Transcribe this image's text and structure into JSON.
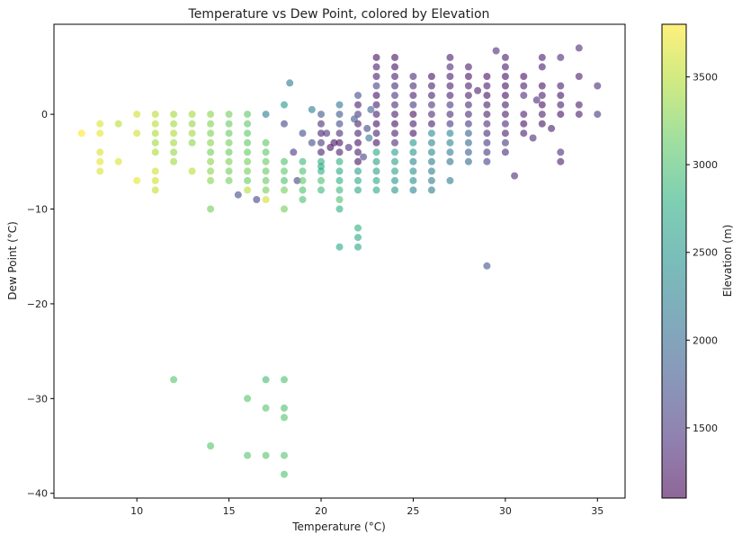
{
  "chart_data": {
    "type": "scatter",
    "title": "Temperature vs Dew Point, colored by Elevation",
    "xlabel": "Temperature (°C)",
    "ylabel": "Dew Point (°C)",
    "xlim": [
      5.5,
      36.5
    ],
    "ylim": [
      -40.5,
      9.5
    ],
    "xticks": [
      10,
      15,
      20,
      25,
      30,
      35
    ],
    "yticks": [
      -40,
      -30,
      -20,
      -10,
      0
    ],
    "grid": false,
    "colorbar": {
      "label": "Elevation (m)",
      "colormap": "viridis",
      "range": [
        1100,
        3800
      ],
      "ticks": [
        1500,
        2000,
        2500,
        3000,
        3500
      ]
    },
    "marker_alpha": 0.6,
    "points": [
      [
        7,
        -2,
        3800
      ],
      [
        8,
        -1,
        3650
      ],
      [
        8,
        -2,
        3700
      ],
      [
        8,
        -4,
        3650
      ],
      [
        8,
        -5,
        3700
      ],
      [
        8,
        -6,
        3650
      ],
      [
        9,
        -1,
        3500
      ],
      [
        9,
        -5,
        3650
      ],
      [
        10,
        0,
        3600
      ],
      [
        10,
        -2,
        3600
      ],
      [
        10,
        -7,
        3700
      ],
      [
        11,
        0,
        3500
      ],
      [
        11,
        -1,
        3500
      ],
      [
        11,
        -2,
        3450
      ],
      [
        11,
        -3,
        3400
      ],
      [
        11,
        -4,
        3450
      ],
      [
        11,
        -6,
        3600
      ],
      [
        11,
        -7,
        3600
      ],
      [
        11,
        -8,
        3550
      ],
      [
        12,
        0,
        3400
      ],
      [
        12,
        -1,
        3400
      ],
      [
        12,
        -2,
        3450
      ],
      [
        12,
        -3,
        3400
      ],
      [
        12,
        -4,
        3350
      ],
      [
        12,
        -5,
        3400
      ],
      [
        12,
        -28,
        3050
      ],
      [
        13,
        0,
        3400
      ],
      [
        13,
        -1,
        3350
      ],
      [
        13,
        -2,
        3400
      ],
      [
        13,
        -3,
        3300
      ],
      [
        13,
        -6,
        3500
      ],
      [
        14,
        0,
        3300
      ],
      [
        14,
        -1,
        3250
      ],
      [
        14,
        -2,
        3250
      ],
      [
        14,
        -3,
        3300
      ],
      [
        14,
        -4,
        3200
      ],
      [
        14,
        -5,
        3300
      ],
      [
        14,
        -6,
        3300
      ],
      [
        14,
        -7,
        3300
      ],
      [
        14,
        -10,
        3200
      ],
      [
        14,
        -35,
        3050
      ],
      [
        15,
        0,
        3200
      ],
      [
        15,
        -1,
        3150
      ],
      [
        15,
        -2,
        3150
      ],
      [
        15,
        -3,
        3200
      ],
      [
        15,
        -4,
        3150
      ],
      [
        15,
        -5,
        3250
      ],
      [
        15,
        -6,
        3200
      ],
      [
        15,
        -7,
        3200
      ],
      [
        16,
        0,
        3100
      ],
      [
        16,
        -1,
        3100
      ],
      [
        16,
        -2,
        3100
      ],
      [
        16,
        -3,
        3100
      ],
      [
        16,
        -4,
        3150
      ],
      [
        16,
        -5,
        3200
      ],
      [
        16,
        -6,
        3200
      ],
      [
        16,
        -7,
        3150
      ],
      [
        16,
        -8,
        3500
      ],
      [
        16,
        -30,
        3050
      ],
      [
        16,
        -36,
        3050
      ],
      [
        17,
        0,
        2200
      ],
      [
        17,
        -3,
        3100
      ],
      [
        17,
        -4,
        3100
      ],
      [
        17,
        -5,
        3150
      ],
      [
        17,
        -6,
        3150
      ],
      [
        17,
        -7,
        3150
      ],
      [
        17,
        -8,
        3200
      ],
      [
        17,
        -9,
        3600
      ],
      [
        17,
        -28,
        2950
      ],
      [
        17,
        -31,
        3050
      ],
      [
        17,
        -36,
        3050
      ],
      [
        16.5,
        -9,
        1600
      ],
      [
        15.5,
        -8.5,
        1700
      ],
      [
        18,
        1,
        2500
      ],
      [
        18,
        -1,
        1600
      ],
      [
        18,
        -5,
        3000
      ],
      [
        18,
        -6,
        3100
      ],
      [
        18,
        -7,
        3000
      ],
      [
        18,
        -8,
        3200
      ],
      [
        18,
        -10,
        3200
      ],
      [
        18,
        -28,
        3000
      ],
      [
        18,
        -31,
        3000
      ],
      [
        18,
        -32,
        3050
      ],
      [
        18,
        -36,
        3050
      ],
      [
        18,
        -38,
        3000
      ],
      [
        18.3,
        3.3,
        2200
      ],
      [
        18.5,
        -4,
        1500
      ],
      [
        18.7,
        -7,
        1600
      ],
      [
        19,
        -5,
        2900
      ],
      [
        19,
        -6,
        3000
      ],
      [
        19,
        -7,
        3100
      ],
      [
        19,
        -8,
        3000
      ],
      [
        19,
        -9,
        3000
      ],
      [
        19,
        -2,
        1700
      ],
      [
        19.5,
        0.5,
        2200
      ],
      [
        19.5,
        -3,
        1700
      ],
      [
        20,
        0,
        1800
      ],
      [
        20,
        -1,
        1400
      ],
      [
        20,
        -2,
        1300
      ],
      [
        20,
        -3,
        1500
      ],
      [
        20,
        -4,
        1300
      ],
      [
        20,
        -5,
        2800
      ],
      [
        20,
        -6,
        2800
      ],
      [
        20,
        -7,
        3000
      ],
      [
        20,
        -8,
        2900
      ],
      [
        20,
        -5.5,
        2700
      ],
      [
        20.3,
        -2,
        1500
      ],
      [
        20.5,
        -3.5,
        1200
      ],
      [
        21,
        0,
        1800
      ],
      [
        21,
        -1,
        1700
      ],
      [
        21,
        -2,
        1400
      ],
      [
        21,
        -3,
        1200
      ],
      [
        21,
        -4,
        1300
      ],
      [
        21,
        -5,
        2800
      ],
      [
        21,
        -6,
        2700
      ],
      [
        21,
        -7,
        2800
      ],
      [
        21,
        -8,
        2900
      ],
      [
        21,
        -9,
        3000
      ],
      [
        21,
        -10,
        2800
      ],
      [
        21,
        -14,
        2700
      ],
      [
        21,
        1,
        2100
      ],
      [
        20.7,
        -3,
        1200
      ],
      [
        21.5,
        -3.5,
        1400
      ],
      [
        22,
        -1,
        1300
      ],
      [
        22,
        -2,
        1300
      ],
      [
        22,
        -3,
        1200
      ],
      [
        22,
        -4,
        1300
      ],
      [
        22,
        -5,
        1200
      ],
      [
        22,
        -6,
        2600
      ],
      [
        22,
        -7,
        2700
      ],
      [
        22,
        -8,
        2700
      ],
      [
        22,
        -12,
        2800
      ],
      [
        22,
        -13,
        2700
      ],
      [
        22,
        -14,
        2700
      ],
      [
        22,
        0,
        1500
      ],
      [
        22,
        1,
        1300
      ],
      [
        22,
        2,
        1700
      ],
      [
        21.8,
        -0.5,
        1800
      ],
      [
        22.5,
        -1.5,
        1600
      ],
      [
        22.3,
        -4.5,
        1600
      ],
      [
        23,
        0,
        1300
      ],
      [
        23,
        -1,
        1200
      ],
      [
        23,
        -2,
        1300
      ],
      [
        23,
        -3,
        1200
      ],
      [
        23,
        -4,
        2700
      ],
      [
        23,
        -5,
        2600
      ],
      [
        23,
        -6,
        2600
      ],
      [
        23,
        -7,
        2700
      ],
      [
        23,
        -8,
        2700
      ],
      [
        23,
        1,
        1300
      ],
      [
        23,
        2,
        1200
      ],
      [
        23,
        3,
        1600
      ],
      [
        23,
        4,
        1300
      ],
      [
        23,
        5,
        1300
      ],
      [
        23,
        6,
        1200
      ],
      [
        22.7,
        0.5,
        1900
      ],
      [
        22.6,
        -2.5,
        2100
      ],
      [
        24,
        0,
        1300
      ],
      [
        24,
        -1,
        1200
      ],
      [
        24,
        -2,
        1300
      ],
      [
        24,
        -3,
        1400
      ],
      [
        24,
        -4,
        2600
      ],
      [
        24,
        -5,
        2600
      ],
      [
        24,
        -6,
        2600
      ],
      [
        24,
        -7,
        2500
      ],
      [
        24,
        -8,
        2500
      ],
      [
        24,
        1,
        1400
      ],
      [
        24,
        2,
        1500
      ],
      [
        24,
        3,
        1400
      ],
      [
        24,
        4,
        1300
      ],
      [
        24,
        5,
        1200
      ],
      [
        24,
        6,
        1200
      ],
      [
        25,
        0,
        1200
      ],
      [
        25,
        -1,
        1300
      ],
      [
        25,
        -2,
        1200
      ],
      [
        25,
        -3,
        2500
      ],
      [
        25,
        -4,
        2500
      ],
      [
        25,
        -5,
        2300
      ],
      [
        25,
        -6,
        2400
      ],
      [
        25,
        -7,
        2400
      ],
      [
        25,
        -8,
        2300
      ],
      [
        25,
        1,
        1500
      ],
      [
        25,
        2,
        1300
      ],
      [
        25,
        3,
        1400
      ],
      [
        25,
        4,
        1400
      ],
      [
        26,
        0,
        1400
      ],
      [
        26,
        -1,
        1300
      ],
      [
        26,
        -2,
        2400
      ],
      [
        26,
        -3,
        2300
      ],
      [
        26,
        -4,
        2300
      ],
      [
        26,
        -5,
        2200
      ],
      [
        26,
        -6,
        2200
      ],
      [
        26,
        -7,
        2200
      ],
      [
        26,
        -8,
        2200
      ],
      [
        26,
        1,
        1500
      ],
      [
        26,
        2,
        1300
      ],
      [
        26,
        3,
        1300
      ],
      [
        26,
        4,
        1200
      ],
      [
        27,
        0,
        1400
      ],
      [
        27,
        -1,
        1500
      ],
      [
        27,
        -2,
        2300
      ],
      [
        27,
        -3,
        2300
      ],
      [
        27,
        -4,
        2200
      ],
      [
        27,
        -5,
        2100
      ],
      [
        27,
        -7,
        2200
      ],
      [
        27,
        1,
        1500
      ],
      [
        27,
        2,
        1300
      ],
      [
        27,
        3,
        1300
      ],
      [
        27,
        4,
        1300
      ],
      [
        27,
        5,
        1400
      ],
      [
        27,
        6,
        1300
      ],
      [
        28,
        0,
        1400
      ],
      [
        28,
        -1,
        1500
      ],
      [
        28,
        -2,
        1900
      ],
      [
        28,
        -3,
        2000
      ],
      [
        28,
        -4,
        1900
      ],
      [
        28,
        -5,
        2000
      ],
      [
        28,
        1,
        1400
      ],
      [
        28,
        2,
        1300
      ],
      [
        28,
        3,
        1300
      ],
      [
        28,
        4,
        1200
      ],
      [
        28,
        5,
        1300
      ],
      [
        29,
        0,
        1300
      ],
      [
        29,
        -1,
        1400
      ],
      [
        29,
        -2,
        1400
      ],
      [
        29,
        -3,
        1500
      ],
      [
        29,
        -4,
        1500
      ],
      [
        29,
        -5,
        1600
      ],
      [
        29,
        1,
        1300
      ],
      [
        29,
        2,
        1200
      ],
      [
        29,
        3,
        1300
      ],
      [
        29,
        4,
        1200
      ],
      [
        29,
        -16,
        1800
      ],
      [
        30,
        0,
        1300
      ],
      [
        30,
        -1,
        1400
      ],
      [
        30,
        -2,
        1300
      ],
      [
        30,
        -3,
        1500
      ],
      [
        30,
        -4,
        1400
      ],
      [
        30,
        1,
        1300
      ],
      [
        30,
        2,
        1200
      ],
      [
        30,
        3,
        1200
      ],
      [
        30,
        4,
        1200
      ],
      [
        30,
        5,
        1300
      ],
      [
        30,
        6,
        1300
      ],
      [
        31,
        0,
        1300
      ],
      [
        31,
        -1,
        1200
      ],
      [
        31,
        -2,
        1300
      ],
      [
        31,
        2,
        1400
      ],
      [
        31,
        3,
        1300
      ],
      [
        31,
        4,
        1200
      ],
      [
        30.5,
        -6.5,
        1400
      ],
      [
        31.5,
        -2.5,
        1400
      ],
      [
        32,
        0,
        1300
      ],
      [
        32,
        -1,
        1200
      ],
      [
        32,
        1,
        1200
      ],
      [
        32,
        2,
        1300
      ],
      [
        32,
        3,
        1200
      ],
      [
        32,
        5,
        1300
      ],
      [
        32,
        6,
        1300
      ],
      [
        33,
        0,
        1200
      ],
      [
        33,
        2,
        1200
      ],
      [
        33,
        3,
        1300
      ],
      [
        33,
        6,
        1400
      ],
      [
        33,
        -5,
        1300
      ],
      [
        33,
        -4,
        1400
      ],
      [
        33,
        1,
        1300
      ],
      [
        34,
        0,
        1300
      ],
      [
        34,
        1,
        1300
      ],
      [
        34,
        4,
        1300
      ],
      [
        34,
        7,
        1400
      ],
      [
        35,
        0,
        1500
      ],
      [
        35,
        3,
        1400
      ],
      [
        32.5,
        -1.5,
        1300
      ],
      [
        31.7,
        1.5,
        1400
      ],
      [
        29.5,
        6.7,
        1400
      ],
      [
        28.5,
        2.5,
        1300
      ]
    ]
  }
}
